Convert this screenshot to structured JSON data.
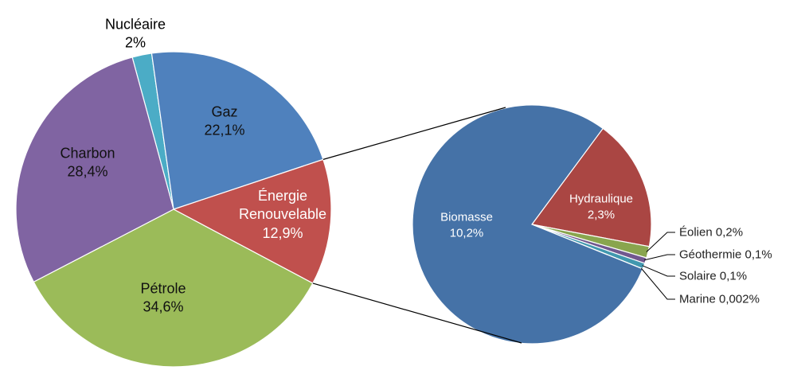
{
  "chart_data": [
    {
      "type": "pie",
      "labels": [
        "Nucléaire",
        "Gaz",
        "Énergie Renouvelable",
        "Pétrole",
        "Charbon"
      ],
      "values": [
        2,
        22.1,
        12.9,
        34.6,
        28.4
      ],
      "value_labels": [
        "2%",
        "22,1%",
        "12,9%",
        "34,6%",
        "28,4%"
      ],
      "colors": [
        "#4bacc6",
        "#4f81bd",
        "#c0504d",
        "#9bbb59",
        "#8064a2"
      ]
    },
    {
      "type": "pie",
      "labels": [
        "Hydraulique",
        "Éolien",
        "Géothermie",
        "Solaire",
        "Marine",
        "Biomasse"
      ],
      "values": [
        2.3,
        0.2,
        0.1,
        0.1,
        0.002,
        10.2
      ],
      "value_labels": [
        "2,3%",
        "0,2%",
        "0,1%",
        "0,1%",
        "0,002%",
        "10,2%"
      ],
      "colors": [
        "#aa4643",
        "#89a54e",
        "#71588f",
        "#4198af",
        "#db843d",
        "#4572a7"
      ]
    }
  ]
}
